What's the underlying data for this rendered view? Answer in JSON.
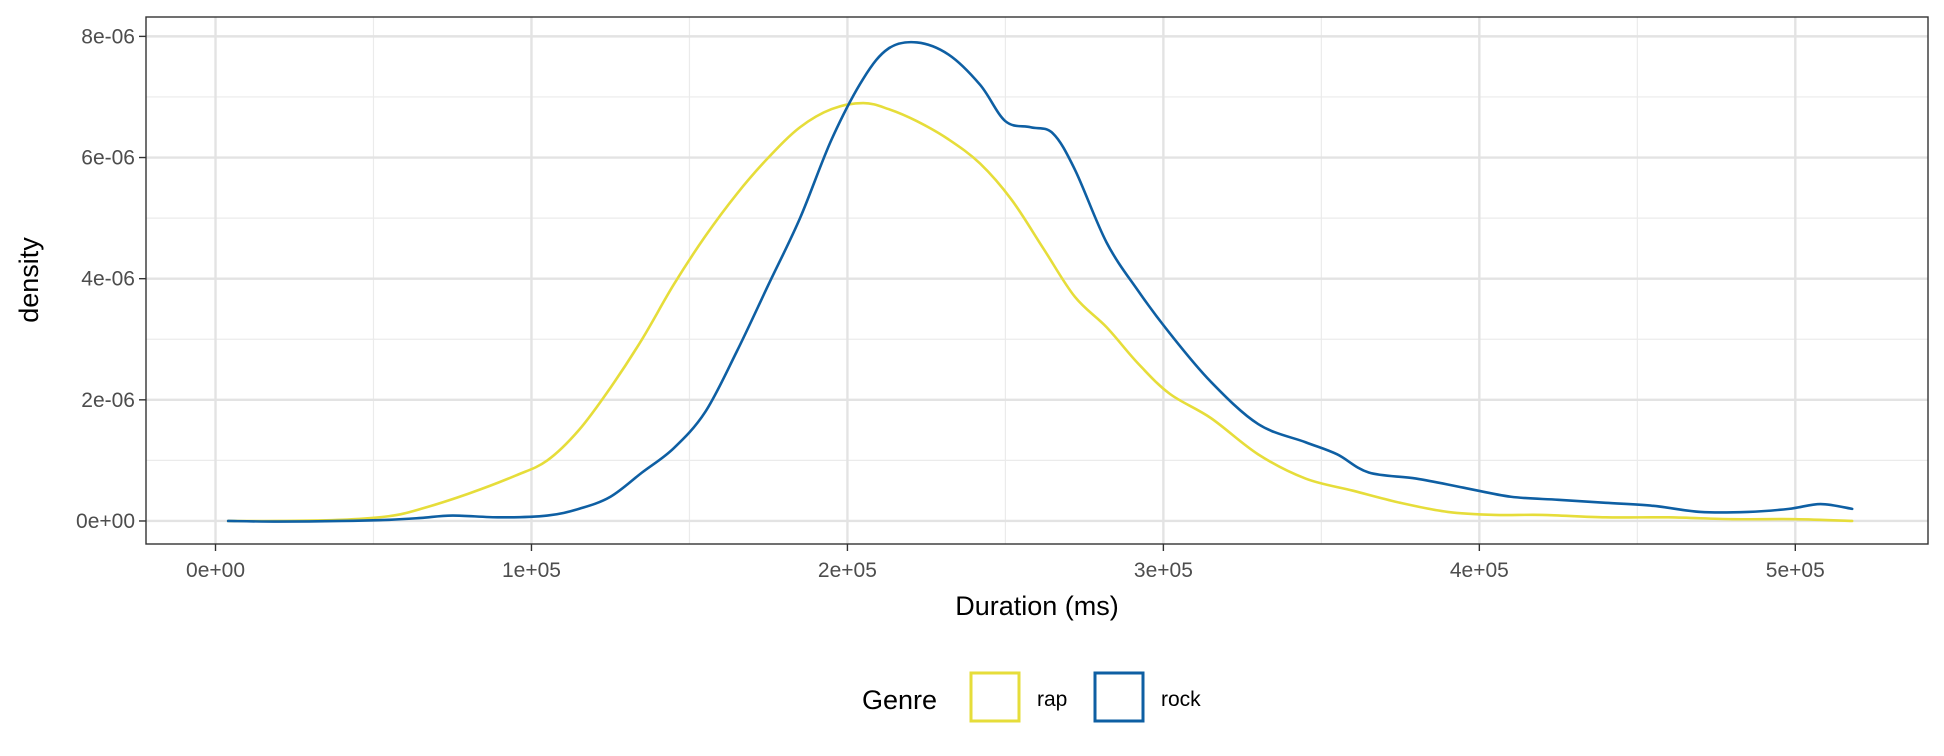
{
  "chart_data": {
    "type": "line",
    "subtype": "density",
    "xlabel": "Duration (ms)",
    "ylabel": "density",
    "xlim": [
      -22000,
      542000
    ],
    "ylim": [
      -3.8e-07,
      8.32e-06
    ],
    "x_ticks": [
      {
        "value": 0,
        "label": "0e+00"
      },
      {
        "value": 100000,
        "label": "1e+05"
      },
      {
        "value": 200000,
        "label": "2e+05"
      },
      {
        "value": 300000,
        "label": "3e+05"
      },
      {
        "value": 400000,
        "label": "4e+05"
      },
      {
        "value": 500000,
        "label": "5e+05"
      }
    ],
    "y_ticks": [
      {
        "value": 0,
        "label": "0e+00"
      },
      {
        "value": 2e-06,
        "label": "2e-06"
      },
      {
        "value": 4e-06,
        "label": "4e-06"
      },
      {
        "value": 6e-06,
        "label": "6e-06"
      },
      {
        "value": 8e-06,
        "label": "8e-06"
      }
    ],
    "grid": true,
    "legend": {
      "title": "Genre",
      "position": "bottom"
    },
    "series": [
      {
        "name": "rap",
        "color": "#E6DD3A",
        "points": [
          [
            4000,
            0.0
          ],
          [
            20000,
            0.0
          ],
          [
            40000,
            2e-08
          ],
          [
            55000,
            8e-08
          ],
          [
            65000,
            2e-07
          ],
          [
            80000,
            4.5e-07
          ],
          [
            95000,
            7.5e-07
          ],
          [
            105000,
            1e-06
          ],
          [
            115000,
            1.5e-06
          ],
          [
            125000,
            2.2e-06
          ],
          [
            135000,
            3e-06
          ],
          [
            145000,
            3.9e-06
          ],
          [
            155000,
            4.7e-06
          ],
          [
            165000,
            5.4e-06
          ],
          [
            175000,
            6e-06
          ],
          [
            185000,
            6.5e-06
          ],
          [
            195000,
            6.8e-06
          ],
          [
            205000,
            6.9e-06
          ],
          [
            213000,
            6.8e-06
          ],
          [
            222000,
            6.6e-06
          ],
          [
            232000,
            6.3e-06
          ],
          [
            242000,
            5.9e-06
          ],
          [
            252000,
            5.3e-06
          ],
          [
            262000,
            4.5e-06
          ],
          [
            272000,
            3.7e-06
          ],
          [
            282000,
            3.2e-06
          ],
          [
            292000,
            2.6e-06
          ],
          [
            302000,
            2.1e-06
          ],
          [
            315000,
            1.7e-06
          ],
          [
            330000,
            1.1e-06
          ],
          [
            345000,
            7e-07
          ],
          [
            360000,
            5e-07
          ],
          [
            375000,
            3e-07
          ],
          [
            390000,
            1.5e-07
          ],
          [
            405000,
            1e-07
          ],
          [
            420000,
            1e-07
          ],
          [
            440000,
            6e-08
          ],
          [
            460000,
            6e-08
          ],
          [
            480000,
            3e-08
          ],
          [
            500000,
            3e-08
          ],
          [
            518000,
            0.0
          ]
        ]
      },
      {
        "name": "rock",
        "color": "#0E5FA3",
        "points": [
          [
            4000,
            0.0
          ],
          [
            20000,
            -1e-08
          ],
          [
            40000,
            0.0
          ],
          [
            55000,
            2e-08
          ],
          [
            65000,
            5e-08
          ],
          [
            75000,
            9e-08
          ],
          [
            90000,
            6e-08
          ],
          [
            105000,
            9e-08
          ],
          [
            115000,
            2e-07
          ],
          [
            125000,
            4e-07
          ],
          [
            135000,
            8e-07
          ],
          [
            145000,
            1.2e-06
          ],
          [
            155000,
            1.8e-06
          ],
          [
            165000,
            2.8e-06
          ],
          [
            175000,
            3.9e-06
          ],
          [
            185000,
            5e-06
          ],
          [
            195000,
            6.3e-06
          ],
          [
            205000,
            7.3e-06
          ],
          [
            213000,
            7.8e-06
          ],
          [
            222000,
            7.9e-06
          ],
          [
            232000,
            7.7e-06
          ],
          [
            242000,
            7.2e-06
          ],
          [
            250000,
            6.6e-06
          ],
          [
            258000,
            6.5e-06
          ],
          [
            265000,
            6.4e-06
          ],
          [
            272000,
            5.8e-06
          ],
          [
            282000,
            4.6e-06
          ],
          [
            292000,
            3.8e-06
          ],
          [
            302000,
            3.1e-06
          ],
          [
            315000,
            2.3e-06
          ],
          [
            330000,
            1.6e-06
          ],
          [
            345000,
            1.3e-06
          ],
          [
            355000,
            1.1e-06
          ],
          [
            365000,
            8e-07
          ],
          [
            380000,
            7e-07
          ],
          [
            395000,
            5.5e-07
          ],
          [
            410000,
            4e-07
          ],
          [
            425000,
            3.5e-07
          ],
          [
            440000,
            3e-07
          ],
          [
            455000,
            2.5e-07
          ],
          [
            470000,
            1.5e-07
          ],
          [
            485000,
            1.5e-07
          ],
          [
            498000,
            2e-07
          ],
          [
            508000,
            2.8e-07
          ],
          [
            518000,
            2e-07
          ]
        ]
      }
    ]
  }
}
